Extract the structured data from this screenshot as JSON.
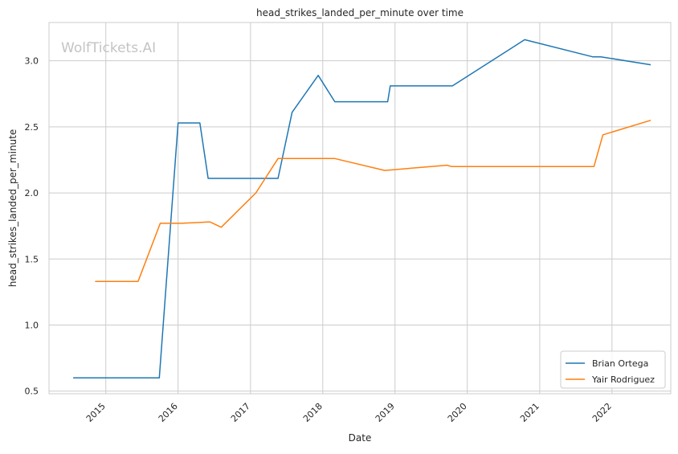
{
  "watermark": "WolfTickets.AI",
  "chart_data": {
    "type": "line",
    "title": "head_strikes_landed_per_minute over time",
    "xlabel": "Date",
    "ylabel": "head_strikes_landed_per_minute",
    "xlim": [
      "2014-03-20",
      "2022-10-25"
    ],
    "ylim": [
      0.48,
      3.29
    ],
    "x_ticks": [
      "2015",
      "2016",
      "2017",
      "2018",
      "2019",
      "2020",
      "2021",
      "2022"
    ],
    "y_ticks": [
      "0.5",
      "1.0",
      "1.5",
      "2.0",
      "2.5",
      "3.0"
    ],
    "grid": true,
    "legend_position": "bottom-right",
    "series": [
      {
        "name": "Brian Ortega",
        "color": "#1f77b4",
        "points": [
          [
            "2014-07-20",
            0.6
          ],
          [
            "2015-09-28",
            0.6
          ],
          [
            "2016-01-01",
            2.53
          ],
          [
            "2016-04-20",
            2.53
          ],
          [
            "2016-06-01",
            2.11
          ],
          [
            "2017-05-20",
            2.11
          ],
          [
            "2017-07-30",
            2.61
          ],
          [
            "2017-12-09",
            2.89
          ],
          [
            "2018-03-03",
            2.69
          ],
          [
            "2018-11-25",
            2.69
          ],
          [
            "2018-12-08",
            2.81
          ],
          [
            "2019-10-18",
            2.81
          ],
          [
            "2020-10-17",
            3.16
          ],
          [
            "2021-09-25",
            3.03
          ],
          [
            "2021-11-06",
            3.03
          ],
          [
            "2022-07-16",
            2.97
          ]
        ]
      },
      {
        "name": "Yair Rodriguez",
        "color": "#ff7f0e",
        "points": [
          [
            "2014-11-08",
            1.33
          ],
          [
            "2015-06-13",
            1.33
          ],
          [
            "2015-10-03",
            1.77
          ],
          [
            "2016-01-17",
            1.77
          ],
          [
            "2016-05-29",
            1.78
          ],
          [
            "2016-06-11",
            1.78
          ],
          [
            "2016-08-06",
            1.74
          ],
          [
            "2017-01-28",
            2.0
          ],
          [
            "2017-05-20",
            2.26
          ],
          [
            "2018-03-03",
            2.26
          ],
          [
            "2018-11-10",
            2.17
          ],
          [
            "2019-09-21",
            2.21
          ],
          [
            "2019-10-12",
            2.2
          ],
          [
            "2021-10-02",
            2.2
          ],
          [
            "2021-11-16",
            2.44
          ],
          [
            "2022-07-16",
            2.55
          ]
        ]
      }
    ]
  }
}
